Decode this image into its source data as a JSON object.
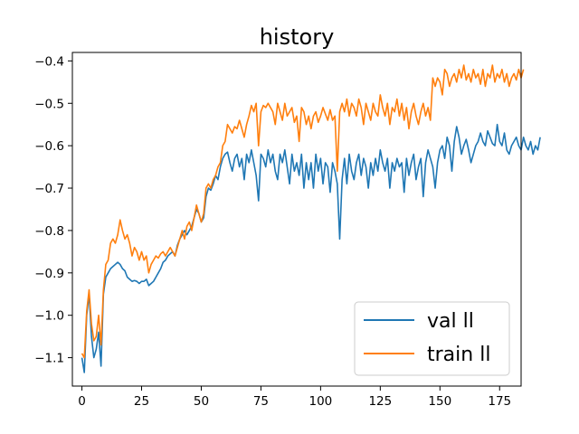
{
  "chart_data": {
    "type": "line",
    "title": "history",
    "xlabel": "",
    "ylabel": "",
    "xlim": [
      -4,
      184
    ],
    "ylim": [
      -1.167,
      -0.38
    ],
    "xticks": [
      0,
      25,
      50,
      75,
      100,
      125,
      150,
      175
    ],
    "yticks": [
      -1.1,
      -1.0,
      -0.9,
      -0.8,
      -0.7,
      -0.6,
      -0.5,
      -0.4
    ],
    "ytick_labels": [
      "−1.1",
      "−1.0",
      "−0.9",
      "−0.8",
      "−0.7",
      "−0.6",
      "−0.5",
      "−0.4"
    ],
    "grid": false,
    "legend_position": "lower-right",
    "series": [
      {
        "name": "val ll",
        "color": "#1f77b4",
        "values": [
          -1.1,
          -1.135,
          -1.0,
          -0.95,
          -1.05,
          -1.1,
          -1.08,
          -1.04,
          -1.12,
          -0.95,
          -0.91,
          -0.9,
          -0.89,
          -0.885,
          -0.88,
          -0.875,
          -0.88,
          -0.89,
          -0.895,
          -0.91,
          -0.915,
          -0.92,
          -0.918,
          -0.92,
          -0.925,
          -0.92,
          -0.92,
          -0.915,
          -0.93,
          -0.925,
          -0.92,
          -0.91,
          -0.9,
          -0.89,
          -0.875,
          -0.87,
          -0.86,
          -0.855,
          -0.85,
          -0.86,
          -0.835,
          -0.82,
          -0.81,
          -0.8,
          -0.81,
          -0.8,
          -0.79,
          -0.77,
          -0.75,
          -0.76,
          -0.78,
          -0.77,
          -0.72,
          -0.7,
          -0.705,
          -0.69,
          -0.67,
          -0.68,
          -0.65,
          -0.63,
          -0.62,
          -0.615,
          -0.64,
          -0.66,
          -0.63,
          -0.62,
          -0.65,
          -0.63,
          -0.68,
          -0.62,
          -0.64,
          -0.61,
          -0.64,
          -0.67,
          -0.73,
          -0.62,
          -0.63,
          -0.65,
          -0.61,
          -0.64,
          -0.62,
          -0.66,
          -0.68,
          -0.62,
          -0.64,
          -0.61,
          -0.65,
          -0.69,
          -0.62,
          -0.66,
          -0.64,
          -0.67,
          -0.62,
          -0.7,
          -0.64,
          -0.68,
          -0.64,
          -0.7,
          -0.62,
          -0.66,
          -0.63,
          -0.69,
          -0.64,
          -0.65,
          -0.71,
          -0.64,
          -0.66,
          -0.69,
          -0.82,
          -0.68,
          -0.63,
          -0.69,
          -0.62,
          -0.66,
          -0.68,
          -0.64,
          -0.62,
          -0.67,
          -0.63,
          -0.65,
          -0.7,
          -0.64,
          -0.67,
          -0.63,
          -0.66,
          -0.61,
          -0.64,
          -0.66,
          -0.63,
          -0.7,
          -0.64,
          -0.66,
          -0.63,
          -0.65,
          -0.64,
          -0.71,
          -0.63,
          -0.67,
          -0.64,
          -0.62,
          -0.68,
          -0.65,
          -0.63,
          -0.72,
          -0.64,
          -0.61,
          -0.63,
          -0.65,
          -0.7,
          -0.64,
          -0.61,
          -0.6,
          -0.63,
          -0.58,
          -0.6,
          -0.66,
          -0.59,
          -0.555,
          -0.58,
          -0.62,
          -0.6,
          -0.585,
          -0.61,
          -0.64,
          -0.62,
          -0.6,
          -0.59,
          -0.57,
          -0.59,
          -0.6,
          -0.565,
          -0.58,
          -0.595,
          -0.6,
          -0.55,
          -0.59,
          -0.6,
          -0.57,
          -0.61,
          -0.62,
          -0.6,
          -0.59,
          -0.58,
          -0.6,
          -0.61,
          -0.58,
          -0.6,
          -0.61,
          -0.59,
          -0.62,
          -0.6,
          -0.61,
          -0.58
        ],
        "x_start": 0,
        "x_step": 1
      },
      {
        "name": "train ll",
        "color": "#ff7f0e",
        "values": [
          -1.09,
          -1.1,
          -0.99,
          -0.94,
          -1.02,
          -1.06,
          -1.05,
          -1.0,
          -1.07,
          -0.94,
          -0.88,
          -0.87,
          -0.83,
          -0.82,
          -0.83,
          -0.81,
          -0.775,
          -0.8,
          -0.82,
          -0.81,
          -0.83,
          -0.86,
          -0.84,
          -0.85,
          -0.87,
          -0.85,
          -0.87,
          -0.86,
          -0.9,
          -0.88,
          -0.87,
          -0.86,
          -0.865,
          -0.855,
          -0.85,
          -0.86,
          -0.85,
          -0.84,
          -0.85,
          -0.86,
          -0.84,
          -0.82,
          -0.8,
          -0.82,
          -0.79,
          -0.78,
          -0.8,
          -0.77,
          -0.74,
          -0.76,
          -0.78,
          -0.76,
          -0.7,
          -0.69,
          -0.7,
          -0.68,
          -0.67,
          -0.65,
          -0.64,
          -0.6,
          -0.59,
          -0.55,
          -0.56,
          -0.57,
          -0.555,
          -0.56,
          -0.54,
          -0.56,
          -0.58,
          -0.55,
          -0.53,
          -0.505,
          -0.52,
          -0.5,
          -0.6,
          -0.52,
          -0.505,
          -0.51,
          -0.5,
          -0.51,
          -0.52,
          -0.55,
          -0.5,
          -0.52,
          -0.54,
          -0.5,
          -0.53,
          -0.52,
          -0.51,
          -0.545,
          -0.53,
          -0.59,
          -0.51,
          -0.52,
          -0.55,
          -0.53,
          -0.56,
          -0.53,
          -0.52,
          -0.545,
          -0.53,
          -0.51,
          -0.525,
          -0.54,
          -0.515,
          -0.54,
          -0.53,
          -0.66,
          -0.52,
          -0.5,
          -0.52,
          -0.49,
          -0.53,
          -0.5,
          -0.51,
          -0.53,
          -0.49,
          -0.51,
          -0.55,
          -0.5,
          -0.52,
          -0.54,
          -0.5,
          -0.52,
          -0.53,
          -0.48,
          -0.51,
          -0.53,
          -0.5,
          -0.55,
          -0.51,
          -0.52,
          -0.49,
          -0.53,
          -0.5,
          -0.54,
          -0.51,
          -0.56,
          -0.52,
          -0.5,
          -0.53,
          -0.55,
          -0.52,
          -0.5,
          -0.53,
          -0.51,
          -0.54,
          -0.44,
          -0.46,
          -0.44,
          -0.45,
          -0.48,
          -0.42,
          -0.43,
          -0.46,
          -0.44,
          -0.43,
          -0.45,
          -0.42,
          -0.44,
          -0.41,
          -0.445,
          -0.43,
          -0.45,
          -0.42,
          -0.44,
          -0.43,
          -0.455,
          -0.42,
          -0.46,
          -0.43,
          -0.44,
          -0.41,
          -0.45,
          -0.43,
          -0.44,
          -0.42,
          -0.45,
          -0.43,
          -0.46,
          -0.44,
          -0.43,
          -0.445,
          -0.42,
          -0.44,
          -0.42
        ],
        "x_start": 0,
        "x_step": 1
      }
    ]
  }
}
